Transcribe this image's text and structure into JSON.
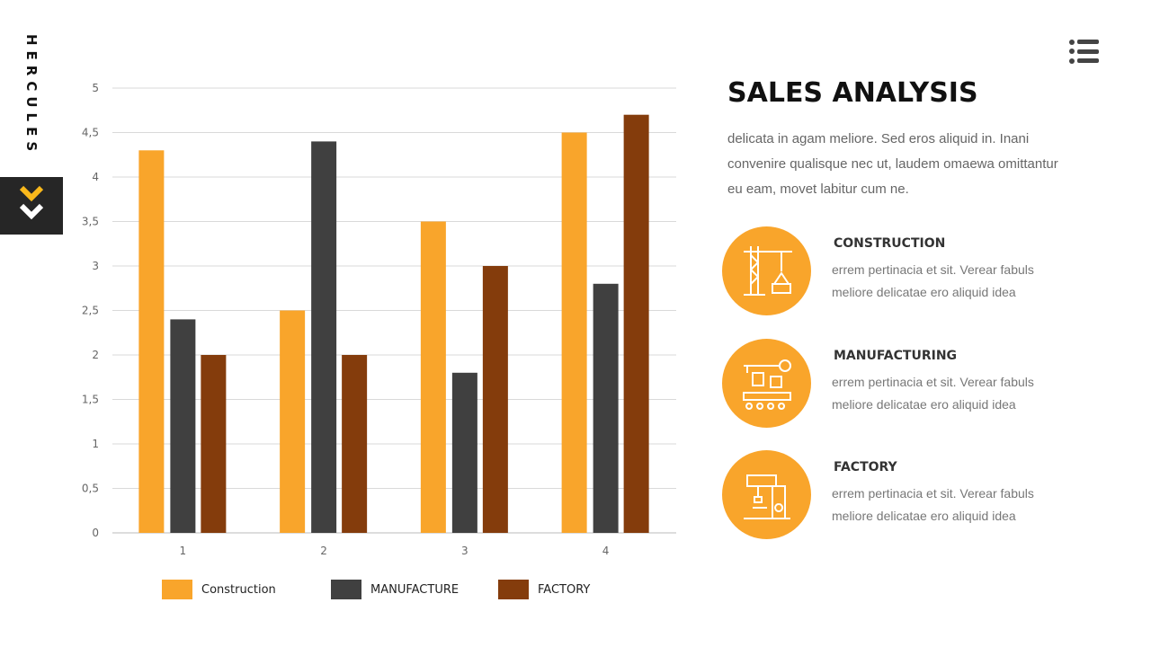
{
  "brand": "HERCULES",
  "title": "SALES ANALYSIS",
  "description": "delicata in agam meliore. Sed eros aliquid in. Inani convenire qualisque nec ut, laudem omaewa omittantur eu eam, movet labitur cum ne.",
  "items": [
    {
      "heading": "CONSTRUCTION",
      "text": "errem pertinacia et sit. Verear fabuls meliore delicatae ero aliquid idea",
      "icon": "crane-icon"
    },
    {
      "heading": "MANUFACTURING",
      "text": "errem pertinacia et sit. Verear fabuls meliore delicatae ero aliquid idea",
      "icon": "assembly-line-icon"
    },
    {
      "heading": "FACTORY",
      "text": "errem pertinacia et sit. Verear fabuls meliore delicatae ero aliquid idea",
      "icon": "machine-icon"
    }
  ],
  "colors": {
    "accent": "#F9A52B",
    "dark": "#404040",
    "brown": "#843C0C"
  },
  "chart_data": {
    "type": "bar",
    "categories": [
      "1",
      "2",
      "3",
      "4"
    ],
    "series": [
      {
        "name": "Construction",
        "values": [
          4.3,
          2.5,
          3.5,
          4.5
        ],
        "color": "#F9A52B"
      },
      {
        "name": "MANUFACTURE",
        "values": [
          2.4,
          4.4,
          1.8,
          2.8
        ],
        "color": "#404040"
      },
      {
        "name": "FACTORY",
        "values": [
          2,
          2,
          3,
          4.7
        ],
        "color": "#843C0C"
      }
    ],
    "ylim": [
      0,
      5
    ],
    "yticks": [
      "0",
      "0,5",
      "1",
      "1,5",
      "2",
      "2,5",
      "3",
      "3,5",
      "4",
      "4,5",
      "5"
    ],
    "grid": true,
    "legend": "bottom"
  }
}
